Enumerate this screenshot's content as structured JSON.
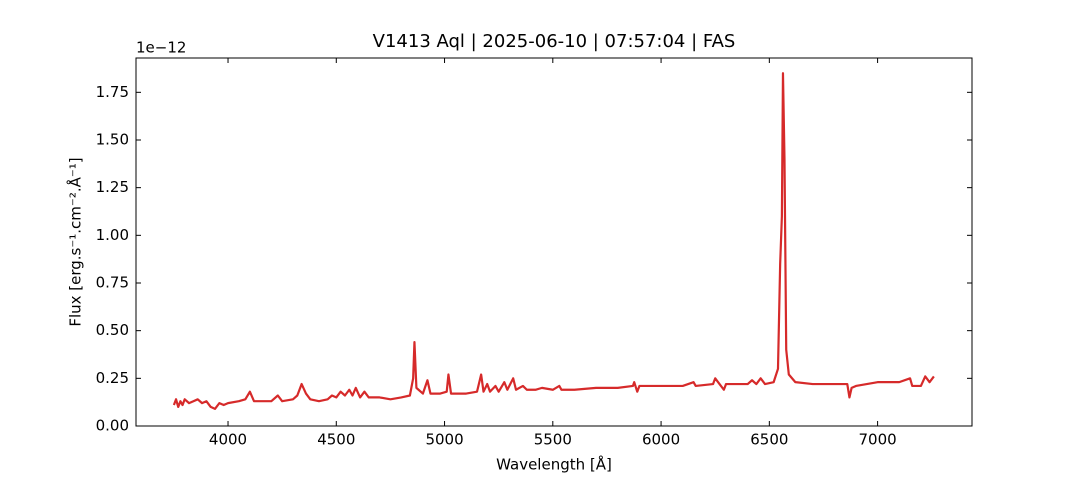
{
  "chart_data": {
    "type": "line",
    "title": "V1413 Aql | 2025-06-10 | 07:57:04 | FAS",
    "xlabel": "Wavelength [Å]",
    "ylabel": "Flux [erg.s⁻¹.cm⁻².Å⁻¹]",
    "offset_text": "1e−12",
    "color": "#d62a2a",
    "x": [
      3750,
      3760,
      3770,
      3780,
      3790,
      3800,
      3820,
      3840,
      3860,
      3880,
      3900,
      3920,
      3940,
      3960,
      3980,
      4000,
      4050,
      4080,
      4101,
      4120,
      4150,
      4200,
      4230,
      4250,
      4300,
      4320,
      4340,
      4360,
      4380,
      4420,
      4460,
      4480,
      4500,
      4520,
      4540,
      4560,
      4575,
      4590,
      4610,
      4630,
      4650,
      4700,
      4750,
      4800,
      4840,
      4855,
      4861,
      4870,
      4900,
      4921,
      4935,
      4980,
      5010,
      5018,
      5030,
      5100,
      5150,
      5169,
      5180,
      5197,
      5210,
      5235,
      5250,
      5276,
      5290,
      5317,
      5330,
      5362,
      5380,
      5420,
      5450,
      5500,
      5530,
      5540,
      5600,
      5700,
      5800,
      5870,
      5876,
      5890,
      5900,
      6000,
      6100,
      6150,
      6160,
      6240,
      6250,
      6270,
      6290,
      6300,
      6350,
      6400,
      6420,
      6440,
      6460,
      6480,
      6520,
      6540,
      6550,
      6558,
      6563,
      6570,
      6578,
      6590,
      6620,
      6700,
      6800,
      6860,
      6870,
      6880,
      6900,
      7000,
      7100,
      7150,
      7160,
      7200,
      7220,
      7240,
      7260
    ],
    "values": [
      0.11,
      0.14,
      0.1,
      0.13,
      0.11,
      0.14,
      0.12,
      0.13,
      0.14,
      0.12,
      0.13,
      0.1,
      0.09,
      0.12,
      0.11,
      0.12,
      0.13,
      0.14,
      0.18,
      0.13,
      0.13,
      0.13,
      0.16,
      0.13,
      0.14,
      0.16,
      0.22,
      0.17,
      0.14,
      0.13,
      0.14,
      0.16,
      0.15,
      0.18,
      0.16,
      0.19,
      0.16,
      0.2,
      0.15,
      0.18,
      0.15,
      0.15,
      0.14,
      0.15,
      0.16,
      0.25,
      0.44,
      0.2,
      0.17,
      0.24,
      0.17,
      0.17,
      0.18,
      0.27,
      0.17,
      0.17,
      0.18,
      0.27,
      0.18,
      0.22,
      0.18,
      0.21,
      0.18,
      0.23,
      0.19,
      0.25,
      0.19,
      0.21,
      0.19,
      0.19,
      0.2,
      0.19,
      0.21,
      0.19,
      0.19,
      0.2,
      0.2,
      0.21,
      0.23,
      0.18,
      0.21,
      0.21,
      0.21,
      0.23,
      0.21,
      0.22,
      0.25,
      0.22,
      0.19,
      0.22,
      0.22,
      0.22,
      0.24,
      0.22,
      0.25,
      0.22,
      0.23,
      0.3,
      0.85,
      1.1,
      1.85,
      1.4,
      0.4,
      0.27,
      0.23,
      0.22,
      0.22,
      0.22,
      0.15,
      0.2,
      0.21,
      0.23,
      0.23,
      0.25,
      0.21,
      0.21,
      0.26,
      0.23,
      0.26
    ],
    "xlim": [
      3575,
      7436
    ],
    "ylim": [
      0.0,
      1.93
    ],
    "xticks": [
      4000,
      4500,
      5000,
      5500,
      6000,
      6500,
      7000
    ],
    "yticks": [
      {
        "value": 0,
        "label": "0.00"
      },
      {
        "value": 0.25,
        "label": "0.25"
      },
      {
        "value": 0.5,
        "label": "0.50"
      },
      {
        "value": 0.75,
        "label": "0.75"
      },
      {
        "value": 1,
        "label": "1.00"
      },
      {
        "value": 1.25,
        "label": "1.25"
      },
      {
        "value": 1.5,
        "label": "1.50"
      },
      {
        "value": 1.75,
        "label": "1.75"
      }
    ]
  }
}
